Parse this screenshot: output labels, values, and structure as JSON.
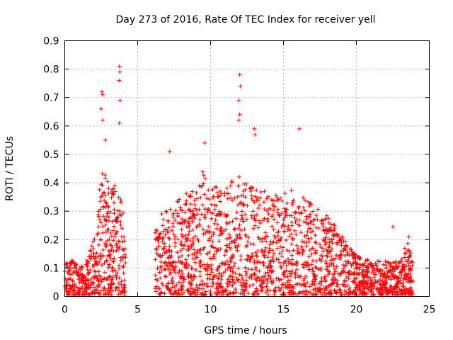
{
  "chart_data": {
    "type": "scatter",
    "title": "Day 273 of 2016, Rate Of TEC Index for receiver yell",
    "xlabel": "GPS time / hours",
    "ylabel": "ROTI / TECUs",
    "xlim": [
      0,
      25
    ],
    "ylim": [
      0,
      0.9
    ],
    "xticks": [
      0,
      5,
      10,
      15,
      20,
      25
    ],
    "yticks": [
      0,
      0.1,
      0.2,
      0.3,
      0.4,
      0.5,
      0.6,
      0.7,
      0.8,
      0.9
    ],
    "grid": true,
    "marker": "+",
    "color": "#ff0000",
    "notable_points": [
      {
        "x": 2.55,
        "y": 0.72
      },
      {
        "x": 2.6,
        "y": 0.71
      },
      {
        "x": 2.5,
        "y": 0.66
      },
      {
        "x": 2.6,
        "y": 0.62
      },
      {
        "x": 3.75,
        "y": 0.81
      },
      {
        "x": 3.78,
        "y": 0.79
      },
      {
        "x": 3.72,
        "y": 0.76
      },
      {
        "x": 3.8,
        "y": 0.69
      },
      {
        "x": 3.75,
        "y": 0.61
      },
      {
        "x": 12.0,
        "y": 0.78
      },
      {
        "x": 12.05,
        "y": 0.74
      },
      {
        "x": 11.95,
        "y": 0.69
      },
      {
        "x": 12.0,
        "y": 0.64
      },
      {
        "x": 11.95,
        "y": 0.62
      },
      {
        "x": 13.0,
        "y": 0.59
      },
      {
        "x": 13.05,
        "y": 0.57
      },
      {
        "x": 16.1,
        "y": 0.59
      },
      {
        "x": 9.6,
        "y": 0.54
      },
      {
        "x": 7.2,
        "y": 0.51
      },
      {
        "x": 2.8,
        "y": 0.55
      },
      {
        "x": 22.5,
        "y": 0.245
      },
      {
        "x": 23.6,
        "y": 0.21
      }
    ],
    "envelope": {
      "description": "approximate typical upper bound of the point cloud by hour; no data between 4.2 and 6.2 hours",
      "x": [
        0,
        0.5,
        1,
        1.5,
        2,
        2.5,
        3,
        3.5,
        4,
        4.2,
        6.2,
        6.5,
        7,
        8,
        9,
        9.5,
        10,
        11,
        12,
        13,
        14,
        15,
        16,
        17,
        18,
        19,
        20,
        21,
        22,
        23,
        23.5,
        23.9
      ],
      "y": [
        0.11,
        0.13,
        0.1,
        0.12,
        0.2,
        0.45,
        0.4,
        0.42,
        0.3,
        0.1,
        0.25,
        0.3,
        0.3,
        0.35,
        0.38,
        0.45,
        0.4,
        0.4,
        0.42,
        0.38,
        0.36,
        0.38,
        0.36,
        0.32,
        0.28,
        0.22,
        0.14,
        0.12,
        0.12,
        0.12,
        0.19,
        0.12
      ]
    }
  }
}
